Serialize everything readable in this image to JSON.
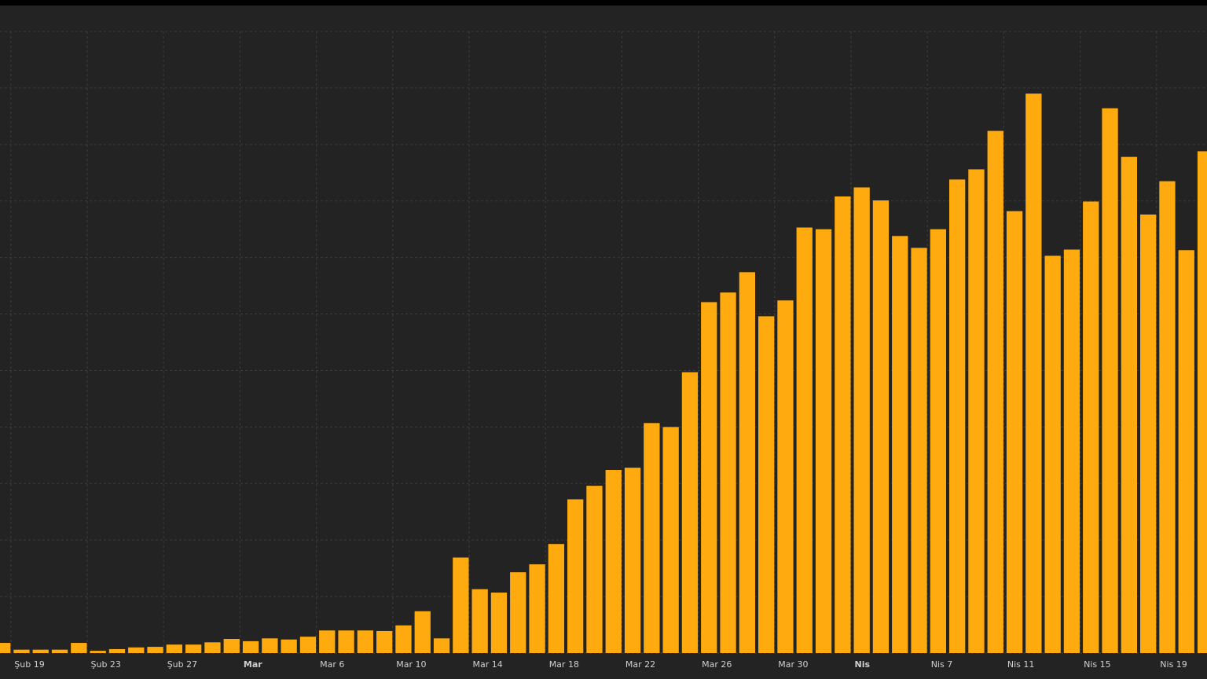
{
  "chart_data": {
    "type": "bar",
    "categories": [
      null,
      "Şub 19",
      null,
      null,
      null,
      "Şub 23",
      null,
      null,
      null,
      "Şub 27",
      null,
      null,
      null,
      "Mar",
      null,
      null,
      null,
      "Mar 6",
      null,
      null,
      null,
      "Mar 10",
      null,
      null,
      null,
      "Mar 14",
      null,
      null,
      null,
      "Mar 18",
      null,
      null,
      null,
      "Mar 22",
      null,
      null,
      null,
      "Mar 26",
      null,
      null,
      null,
      "Mar 30",
      null,
      null,
      null,
      "Nis",
      null,
      null,
      null,
      "Nis 7",
      null,
      null,
      null,
      "Nis 11",
      null,
      null,
      null,
      "Nis 15",
      null,
      null,
      null,
      "Nis 19",
      null,
      null
    ],
    "values": [
      1.8,
      0.6,
      0.6,
      0.6,
      1.8,
      0.4,
      0.7,
      1.0,
      1.1,
      1.5,
      1.5,
      1.9,
      2.5,
      2.1,
      2.6,
      2.4,
      2.9,
      4.0,
      4.0,
      4.0,
      3.9,
      4.9,
      7.4,
      2.6,
      16.9,
      11.3,
      10.7,
      14.3,
      15.7,
      19.3,
      27.2,
      29.6,
      32.4,
      32.8,
      40.7,
      40.0,
      49.7,
      62.1,
      63.8,
      67.4,
      59.6,
      62.4,
      75.3,
      75.0,
      80.8,
      82.4,
      80.1,
      73.8,
      71.7,
      75.0,
      83.8,
      85.6,
      92.4,
      78.2,
      99.0,
      70.3,
      71.4,
      79.9,
      96.4,
      87.8,
      77.6,
      83.5,
      71.3,
      88.8
    ],
    "color": "#ffab0f",
    "ylim": [
      0,
      110
    ],
    "yticks": [
      0,
      10,
      20,
      30,
      40,
      50,
      60,
      70,
      80,
      90,
      100,
      110
    ],
    "grid": true
  }
}
